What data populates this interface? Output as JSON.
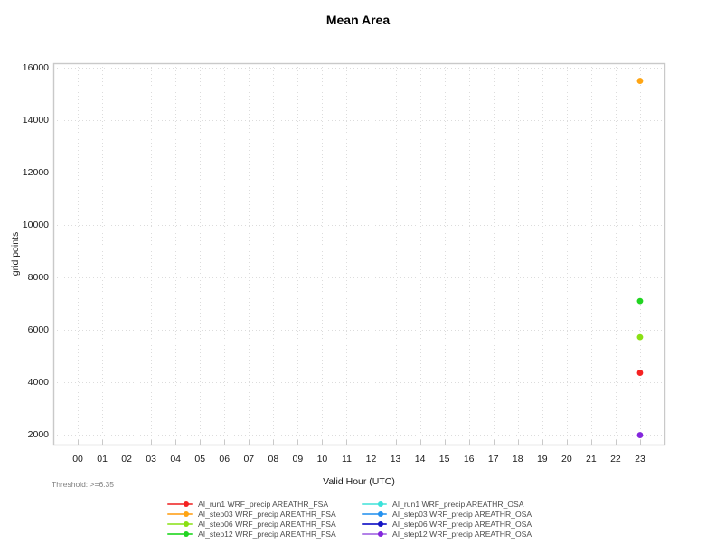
{
  "page": {
    "background": "#ffffff"
  },
  "chart_data": {
    "type": "scatter",
    "title": "Mean Area",
    "xlabel": "Valid Hour (UTC)",
    "ylabel": "grid points",
    "threshold_note": "Threshold: >=6.35",
    "grid": true,
    "legend_position": "bottom",
    "legend_columns": 2,
    "xlim": [
      -1,
      24
    ],
    "ylim": [
      1620,
      16175
    ],
    "x_tick_values": [
      0,
      1,
      2,
      3,
      4,
      5,
      6,
      7,
      8,
      9,
      10,
      11,
      12,
      13,
      14,
      15,
      16,
      17,
      18,
      19,
      20,
      21,
      22,
      23
    ],
    "x_tick_labels": [
      "00",
      "01",
      "02",
      "03",
      "04",
      "05",
      "06",
      "07",
      "08",
      "09",
      "10",
      "11",
      "12",
      "13",
      "14",
      "15",
      "16",
      "17",
      "18",
      "19",
      "20",
      "21",
      "22",
      "23"
    ],
    "y_tick_values": [
      2000,
      4000,
      6000,
      8000,
      10000,
      12000,
      14000,
      16000
    ],
    "y_tick_labels": [
      "2000",
      "4000",
      "6000",
      "8000",
      "10000",
      "12000",
      "14000",
      "16000"
    ],
    "axis_color": "#c9c9c9",
    "grid_color": "#dcdcdc",
    "series": [
      {
        "name": "AI_run1 WRF_precip AREATHR_FSA",
        "color": "#f52222",
        "line_color": "#f25555",
        "points": [
          {
            "x": 23,
            "y": 4360
          }
        ]
      },
      {
        "name": "AI_step03 WRF_precip AREATHR_FSA",
        "color": "#ffa513",
        "line_color": "#ffb347",
        "points": [
          {
            "x": 23,
            "y": 15500
          }
        ]
      },
      {
        "name": "AI_step06 WRF_precip AREATHR_FSA",
        "color": "#8ae014",
        "line_color": "#a5e84d",
        "points": [
          {
            "x": 23,
            "y": 5720
          }
        ]
      },
      {
        "name": "AI_step12 WRF_precip AREATHR_FSA",
        "color": "#21d421",
        "line_color": "#4ade4a",
        "points": [
          {
            "x": 23,
            "y": 7100
          }
        ]
      },
      {
        "name": "AI_run1 WRF_precip AREATHR_OSA",
        "color": "#3ae2da",
        "line_color": "#6fe9e2",
        "points": []
      },
      {
        "name": "AI_step03 WRF_precip AREATHR_OSA",
        "color": "#2492f0",
        "line_color": "#55aaf2",
        "points": []
      },
      {
        "name": "AI_step06 WRF_precip AREATHR_OSA",
        "color": "#1414c4",
        "line_color": "#3a3ad0",
        "points": []
      },
      {
        "name": "AI_step12 WRF_precip AREATHR_OSA",
        "color": "#8426dd",
        "line_color": "#b382e8",
        "points": [
          {
            "x": 23,
            "y": 1980
          }
        ]
      }
    ]
  }
}
